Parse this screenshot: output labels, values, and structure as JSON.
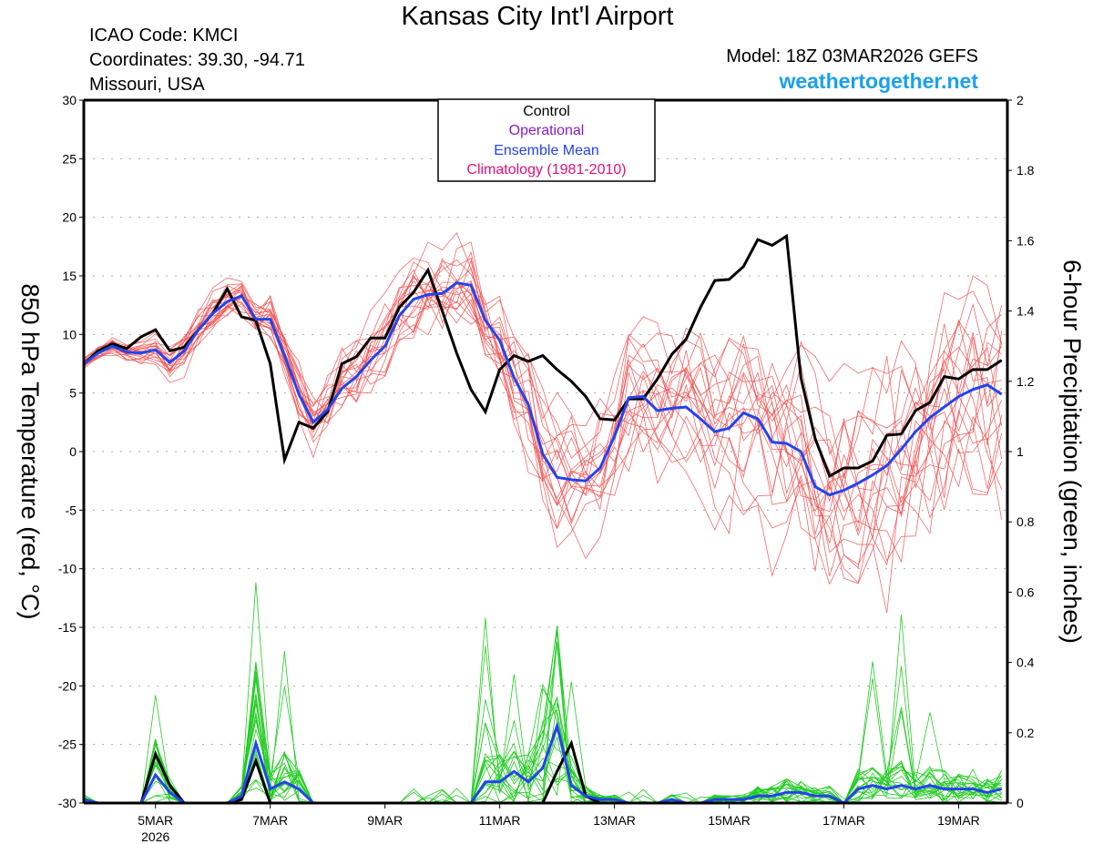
{
  "header": {
    "title": "Kansas City Int'l Airport",
    "icao": "ICAO Code: KMCI",
    "coordinates": "Coordinates: 39.30, -94.71",
    "location": "Missouri, USA",
    "model": "Model: 18Z 03MAR2026 GEFS",
    "site": "weathertogether.net"
  },
  "colors": {
    "control": "#000000",
    "operational": "#8a1ccc",
    "ensemble_mean": "#2244ee",
    "climatology": "#e0107a",
    "members_temp": "#f05050",
    "members_precip": "#22cc22",
    "site": "#1aa0ee"
  },
  "chart_data": {
    "type": "line",
    "title": "Kansas City Int'l Airport",
    "ylabel": "850 hPa Temperature (red, °C)",
    "ylabel_right": "6-hour Precipitation (green, inches)",
    "ylim": [
      -30,
      30
    ],
    "ylim_right": [
      0,
      2
    ],
    "yticks": [
      "30",
      "25",
      "20",
      "15",
      "10",
      "5",
      "0",
      "-5",
      "-10",
      "-15",
      "-20",
      "-25",
      "-30"
    ],
    "yticks_right": [
      "2",
      "1.8",
      "1.6",
      "1.4",
      "1.2",
      "1",
      "0.8",
      "0.6",
      "0.4",
      "0.2",
      "0"
    ],
    "xticks": [
      {
        "label": "5MAR",
        "sub": "2026",
        "day": 5
      },
      {
        "label": "7MAR",
        "sub": "",
        "day": 7
      },
      {
        "label": "9MAR",
        "sub": "",
        "day": 9
      },
      {
        "label": "11MAR",
        "sub": "",
        "day": 11
      },
      {
        "label": "13MAR",
        "sub": "",
        "day": 13
      },
      {
        "label": "15MAR",
        "sub": "",
        "day": 15
      },
      {
        "label": "17MAR",
        "sub": "",
        "day": 17
      },
      {
        "label": "19MAR",
        "sub": "",
        "day": 19
      }
    ],
    "x_start_day": 3.75,
    "x_step_days": 0.25,
    "x_end_day": 19.85,
    "grid": true,
    "legend": {
      "placement": "top-center",
      "entries": [
        {
          "label": "Control",
          "color_key": "control"
        },
        {
          "label": "Operational",
          "color_key": "operational"
        },
        {
          "label": "Ensemble Mean",
          "color_key": "ensemble_mean"
        },
        {
          "label": "Climatology (1981-2010)",
          "color_key": "climatology"
        }
      ]
    },
    "series": [
      {
        "name": "Control 850 hPa Temperature",
        "axis": "left",
        "values": [
          7.5,
          8.6,
          9.2,
          8.8,
          9.8,
          10.4,
          8.6,
          8.9,
          10.4,
          11.8,
          13.9,
          11.5,
          11.2,
          7.5,
          -0.7,
          2.5,
          2.0,
          3.4,
          7.5,
          8.1,
          9.7,
          9.7,
          12.3,
          13.6,
          15.5,
          12.0,
          8.4,
          5.3,
          3.4,
          7.0,
          8.2,
          7.7,
          8.2,
          7.0,
          6.0,
          4.7,
          2.8,
          2.7,
          4.5,
          4.5,
          6.2,
          8.3,
          9.6,
          12.3,
          14.6,
          14.7,
          15.8,
          18.1,
          17.6,
          18.4,
          6.3,
          1.1,
          -2.1,
          -1.4,
          -1.4,
          -0.8,
          1.4,
          1.5,
          3.5,
          4.2,
          6.4,
          6.2,
          7.0,
          7.0,
          7.8
        ]
      },
      {
        "name": "Ensemble Mean 850 hPa Temperature",
        "axis": "left",
        "values": [
          7.5,
          8.4,
          9.0,
          8.5,
          8.4,
          8.7,
          7.6,
          8.6,
          10.4,
          11.8,
          12.8,
          13.3,
          11.3,
          11.3,
          8.2,
          4.9,
          2.5,
          3.6,
          5.4,
          6.4,
          7.8,
          9.0,
          11.6,
          13.0,
          13.4,
          13.5,
          14.4,
          14.2,
          11.2,
          9.5,
          6.3,
          4.0,
          -0.2,
          -2.2,
          -2.4,
          -2.5,
          -1.4,
          1.3,
          4.6,
          4.7,
          3.5,
          3.7,
          3.8,
          2.8,
          1.7,
          2.0,
          3.3,
          2.8,
          0.8,
          0.7,
          0.0,
          -3.0,
          -3.7,
          -3.3,
          -2.7,
          -2.0,
          -1.2,
          0.2,
          1.7,
          2.9,
          3.8,
          4.7,
          5.3,
          5.7,
          4.9
        ]
      },
      {
        "name": "Control 6-hour Precipitation",
        "axis": "right",
        "values": [
          0.0,
          0.0,
          0.0,
          0.0,
          0.0,
          0.14,
          0.05,
          0.0,
          0.0,
          0.0,
          0.0,
          0.01,
          0.12,
          0.0,
          0.0,
          0.0,
          0.0,
          0.0,
          0.0,
          0.0,
          0.0,
          0.0,
          0.0,
          0.0,
          0.0,
          0.0,
          0.0,
          0.0,
          0.0,
          0.0,
          0.0,
          0.0,
          0.0,
          0.09,
          0.17,
          0.02,
          0.0,
          0.0,
          0.0,
          0.0,
          0.0,
          0.0,
          0.0,
          0.0,
          0.0,
          0.0,
          0.0,
          0.0,
          0.0,
          0.0,
          0.0,
          0.0,
          0.0,
          0.0,
          0.0,
          0.0,
          0.0,
          0.0,
          0.0,
          0.0,
          0.0,
          0.0,
          0.0,
          0.0,
          0.0
        ]
      },
      {
        "name": "Ensemble Mean 6-hour Precipitation",
        "axis": "right",
        "values": [
          0.01,
          0.0,
          0.0,
          0.0,
          0.0,
          0.08,
          0.03,
          0.0,
          0.0,
          0.0,
          0.0,
          0.02,
          0.17,
          0.04,
          0.06,
          0.04,
          0.0,
          0.0,
          0.0,
          0.0,
          0.0,
          0.0,
          0.0,
          0.0,
          0.0,
          0.0,
          0.0,
          0.0,
          0.06,
          0.06,
          0.09,
          0.06,
          0.1,
          0.22,
          0.05,
          0.02,
          0.01,
          0.01,
          0.0,
          0.0,
          0.0,
          0.01,
          0.0,
          0.0,
          0.01,
          0.01,
          0.01,
          0.02,
          0.02,
          0.03,
          0.03,
          0.02,
          0.02,
          0.0,
          0.04,
          0.05,
          0.04,
          0.05,
          0.04,
          0.05,
          0.04,
          0.04,
          0.04,
          0.03,
          0.04
        ]
      }
    ],
    "members_note": "20 red ensemble member temperature traces and 20 green ensemble member precipitation traces (spread approximated)"
  }
}
